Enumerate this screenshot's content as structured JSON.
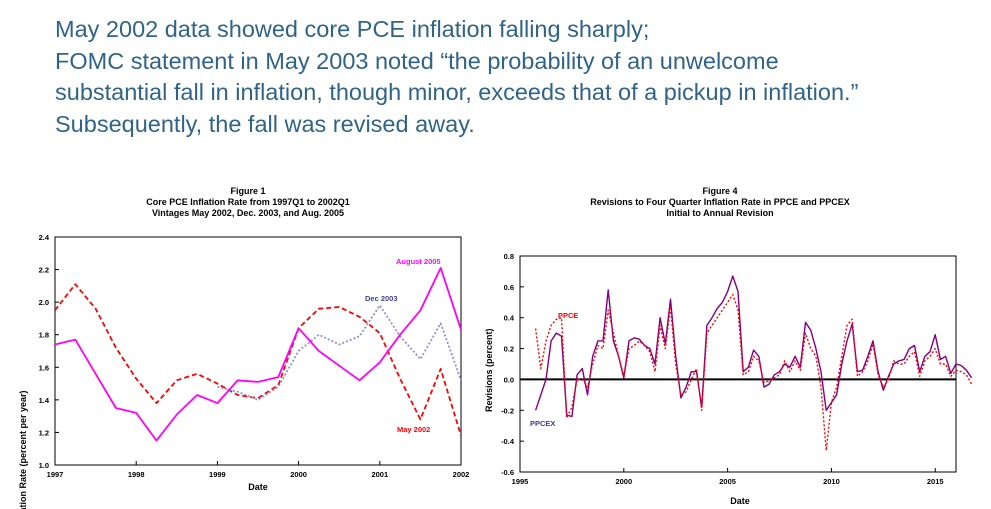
{
  "headline": {
    "line1": "May 2002 data showed core PCE inflation falling sharply;",
    "line2": "FOMC statement in May 2003 noted “the probability of an unwelcome",
    "line3": "substantial fall in inflation, though minor, exceeds that of a pickup in inflation.”",
    "line4": "Subsequently, the fall was revised away."
  },
  "colors": {
    "text": "#2f6488",
    "may2002": "#ff0000",
    "dec2003": "#9090d0",
    "aug2005": "#ff00ff",
    "ppce": "#ff0000",
    "ppcex": "#800080"
  },
  "chart_data": [
    {
      "type": "line",
      "title": "Figure 1",
      "subtitle_lines": [
        "Core PCE Inflation Rate from 1997Q1 to 2002Q1",
        "Vintages May 2002, Dec. 2003, and Aug. 2005"
      ],
      "xlabel": "Date",
      "ylabel": "Inflation Rate (percent per year)",
      "xlim": [
        1997,
        2002
      ],
      "ylim": [
        1.0,
        2.4
      ],
      "x_ticks": [
        1997,
        1998,
        1999,
        2000,
        2001,
        2002
      ],
      "y_ticks": [
        "1.0",
        "1.2",
        "1.4",
        "1.6",
        "1.8",
        "2.0",
        "2.2",
        "2.4"
      ],
      "grid": false,
      "series": [
        {
          "name": "May 2002",
          "style": "dashed",
          "color": "#ff0000",
          "x": [
            1997,
            1997.25,
            1997.5,
            1997.75,
            1998,
            1998.25,
            1998.5,
            1998.75,
            1999,
            1999.25,
            1999.5,
            1999.75,
            2000,
            2000.25,
            2000.5,
            2000.75,
            2001,
            2001.25,
            2001.5,
            2001.75,
            2002
          ],
          "y": [
            1.95,
            2.11,
            1.96,
            1.72,
            1.53,
            1.38,
            1.52,
            1.56,
            1.5,
            1.43,
            1.41,
            1.49,
            1.84,
            1.96,
            1.97,
            1.91,
            1.81,
            1.53,
            1.28,
            1.59,
            1.18
          ]
        },
        {
          "name": "Dec 2003",
          "style": "dotted",
          "color": "#9090d0",
          "x": [
            1999,
            1999.25,
            1999.5,
            1999.75,
            2000,
            2000.25,
            2000.5,
            2000.75,
            2001,
            2001.25,
            2001.5,
            2001.75,
            2002
          ],
          "y": [
            1.48,
            1.45,
            1.4,
            1.48,
            1.7,
            1.8,
            1.74,
            1.79,
            1.98,
            1.79,
            1.65,
            1.87,
            1.52
          ]
        },
        {
          "name": "August 2005",
          "style": "solid",
          "color": "#ff00ff",
          "x": [
            1997,
            1997.25,
            1997.5,
            1997.75,
            1998,
            1998.25,
            1998.5,
            1998.75,
            1999,
            1999.25,
            1999.5,
            1999.75,
            2000,
            2000.25,
            2000.5,
            2000.75,
            2001,
            2001.25,
            2001.5,
            2001.75,
            2002
          ],
          "y": [
            1.74,
            1.77,
            1.56,
            1.35,
            1.32,
            1.15,
            1.31,
            1.43,
            1.38,
            1.52,
            1.51,
            1.54,
            1.84,
            1.7,
            1.61,
            1.52,
            1.63,
            1.8,
            1.95,
            2.21,
            1.83
          ]
        }
      ],
      "annotations": [
        "August 2005",
        "Dec 2003",
        "May 2002"
      ]
    },
    {
      "type": "line",
      "title": "Figure 4",
      "subtitle_lines": [
        "Revisions to Four Quarter Inflation Rate in PPCE and PPCEX",
        "Initial to Annual Revision"
      ],
      "xlabel": "Date",
      "ylabel": "Revisions (percent)",
      "xlim": [
        1995,
        2016
      ],
      "ylim": [
        -0.6,
        0.8
      ],
      "x_ticks": [
        1995,
        2000,
        2005,
        2010,
        2015
      ],
      "y_ticks": [
        "-0.6",
        "-0.4",
        "-0.2",
        "0.0",
        "0.2",
        "0.4",
        "0.6",
        "0.8"
      ],
      "zero_line": true,
      "grid": false,
      "start": 1995.75,
      "step": 0.25,
      "series": [
        {
          "name": "PPCEX",
          "style": "solid",
          "color": "#800080",
          "values": [
            -0.2,
            -0.1,
            0.0,
            0.25,
            0.3,
            0.28,
            -0.23,
            -0.24,
            0.03,
            0.07,
            -0.1,
            0.15,
            0.25,
            0.25,
            0.58,
            0.25,
            0.15,
            0.01,
            0.25,
            0.27,
            0.26,
            0.22,
            0.2,
            0.1,
            0.4,
            0.23,
            0.52,
            0.15,
            -0.12,
            -0.05,
            0.05,
            0.05,
            -0.18,
            0.35,
            0.4,
            0.46,
            0.5,
            0.57,
            0.67,
            0.57,
            0.05,
            0.08,
            0.19,
            0.15,
            -0.05,
            -0.03,
            0.03,
            0.05,
            0.1,
            0.08,
            0.15,
            0.08,
            0.37,
            0.32,
            0.2,
            0.05,
            -0.2,
            -0.15,
            -0.1,
            0.1,
            0.25,
            0.36,
            0.05,
            0.06,
            0.15,
            0.25,
            0.05,
            -0.07,
            0.02,
            0.1,
            0.12,
            0.13,
            0.2,
            0.22,
            0.05,
            0.15,
            0.18,
            0.29,
            0.13,
            0.15,
            0.04,
            0.1,
            0.09,
            0.06,
            0.01
          ]
        },
        {
          "name": "PPCE",
          "style": "dotted",
          "color": "#ff0000",
          "values": [
            0.33,
            0.07,
            0.25,
            0.35,
            0.39,
            0.4,
            -0.25,
            -0.18,
            0.0,
            0.0,
            -0.05,
            0.1,
            0.22,
            0.2,
            0.45,
            0.3,
            0.15,
            0.02,
            0.2,
            0.22,
            0.25,
            0.22,
            0.18,
            0.05,
            0.35,
            0.2,
            0.47,
            0.1,
            -0.1,
            -0.08,
            0.0,
            0.07,
            -0.2,
            0.3,
            0.35,
            0.4,
            0.45,
            0.5,
            0.55,
            0.45,
            0.03,
            0.05,
            0.15,
            0.12,
            -0.02,
            -0.01,
            0.01,
            0.03,
            0.12,
            0.05,
            0.12,
            0.06,
            0.3,
            0.2,
            0.15,
            -0.05,
            -0.46,
            -0.15,
            -0.05,
            0.15,
            0.35,
            0.39,
            0.02,
            0.05,
            0.12,
            0.23,
            0.03,
            -0.05,
            0.0,
            0.12,
            0.1,
            0.1,
            0.15,
            0.18,
            0.02,
            0.12,
            0.15,
            0.2,
            0.1,
            0.1,
            0.02,
            0.06,
            0.05,
            0.03,
            -0.03
          ]
        }
      ],
      "annotations": [
        "PPCE",
        "PPCEX"
      ]
    }
  ]
}
